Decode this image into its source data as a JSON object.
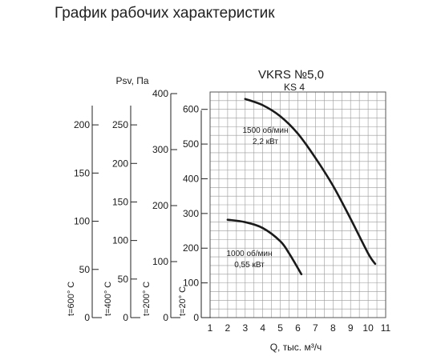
{
  "page": {
    "title": "График рабочих характеристик"
  },
  "chart_data": {
    "type": "line",
    "title": "VKRS №5,0",
    "subtitle": "KS 4",
    "xlabel": "Q, тыс. м³/ч",
    "ylabel": "Psv, Па",
    "xlim": [
      1,
      11
    ],
    "ylim": [
      0,
      650
    ],
    "x_ticks": [
      1,
      2,
      3,
      4,
      5,
      6,
      7,
      8,
      9,
      10,
      11
    ],
    "y_ticks": [
      0,
      100,
      200,
      300,
      400,
      500,
      600
    ],
    "grid": true,
    "series": [
      {
        "name": "1500 об/мин 2,2 кВт",
        "label_line1": "1500 об/мин",
        "label_line2": "2,2 кВт",
        "x": [
          3.0,
          4.0,
          5.0,
          6.0,
          7.0,
          8.0,
          9.0,
          10.0,
          10.4
        ],
        "y": [
          630,
          612,
          580,
          530,
          460,
          380,
          285,
          185,
          155
        ]
      },
      {
        "name": "1000 об/мин 0,55 кВт",
        "label_line1": "1000 об/мин",
        "label_line2": "0,55 кВт",
        "x": [
          2.0,
          3.0,
          4.0,
          5.0,
          5.5,
          6.2
        ],
        "y": [
          282,
          275,
          258,
          220,
          185,
          125
        ]
      }
    ],
    "temperature_scales": [
      {
        "label": "t=600° C",
        "ticks": [
          0,
          50,
          100,
          150,
          200
        ]
      },
      {
        "label": "t=400° C",
        "ticks": [
          0,
          50,
          100,
          150,
          200,
          250
        ]
      },
      {
        "label": "t=200° C",
        "ticks": [
          0,
          100,
          200,
          300,
          400
        ]
      },
      {
        "label": "t=20° C",
        "ticks": [
          0,
          100,
          200,
          300,
          400,
          500,
          600
        ]
      }
    ]
  }
}
